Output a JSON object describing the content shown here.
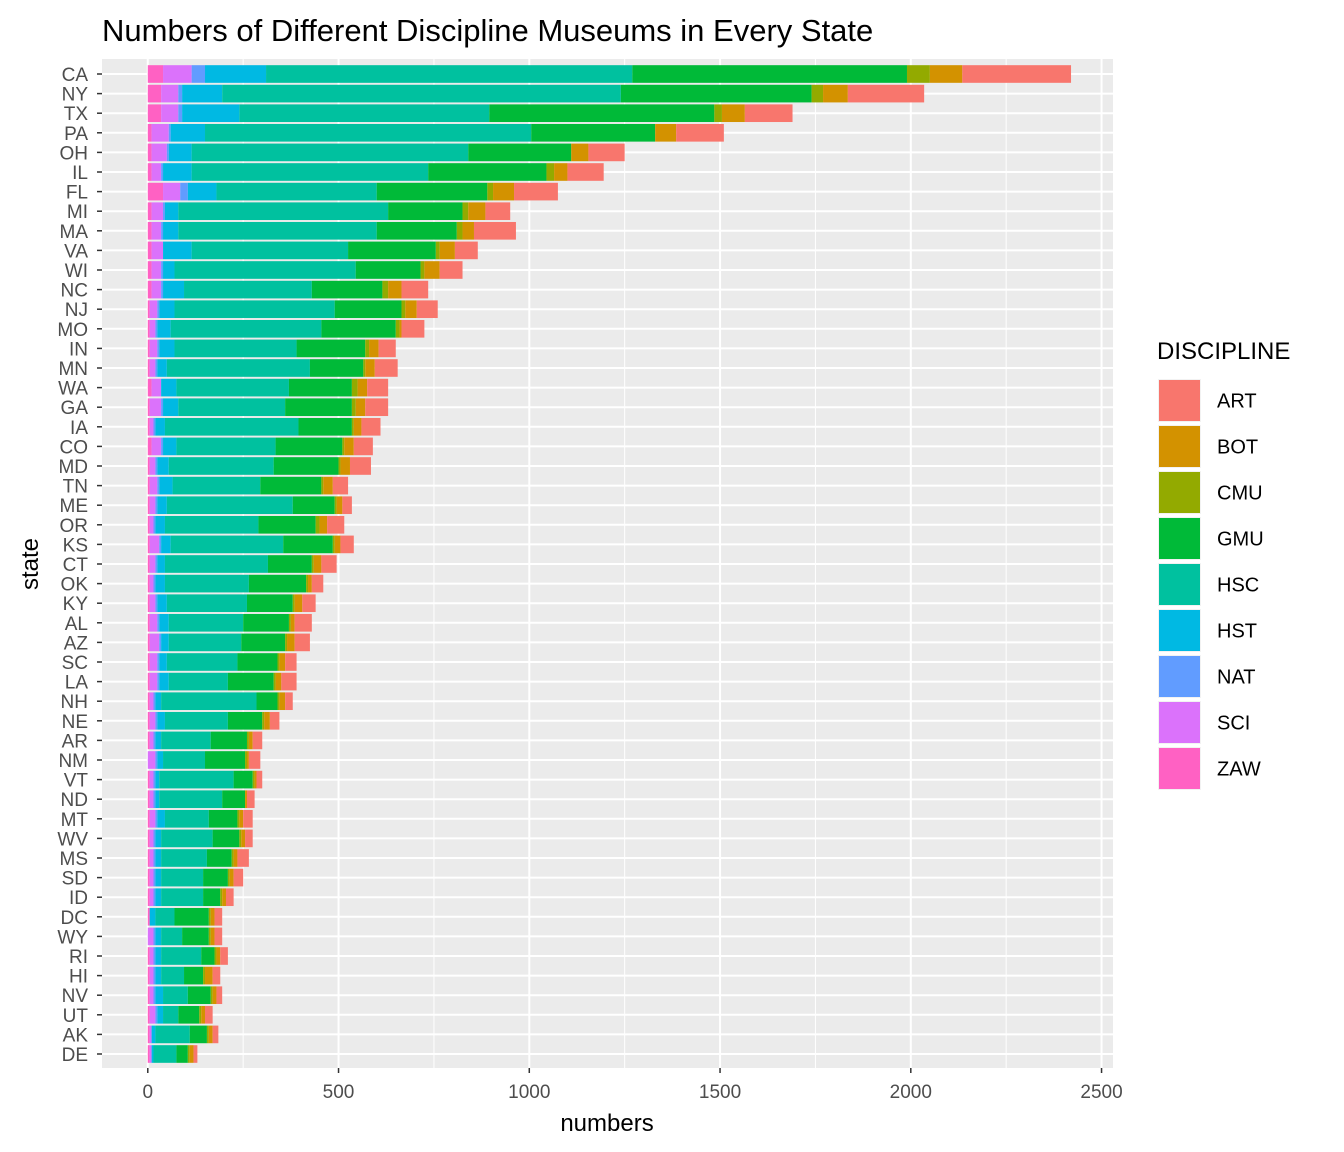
{
  "chart_data": {
    "type": "bar",
    "orientation": "horizontal",
    "stacked": true,
    "title": "Numbers of Different Discipline Museums in Every State",
    "xlabel": "numbers",
    "ylabel": "state",
    "xlim": [
      -120,
      2530
    ],
    "x_ticks": [
      0,
      500,
      1000,
      1500,
      2000,
      2500
    ],
    "grid": true,
    "legend": {
      "title": "DISCIPLINE",
      "position": "right"
    },
    "categories": [
      "CA",
      "NY",
      "TX",
      "PA",
      "OH",
      "IL",
      "FL",
      "MI",
      "MA",
      "VA",
      "WI",
      "NC",
      "NJ",
      "MO",
      "IN",
      "MN",
      "WA",
      "GA",
      "IA",
      "CO",
      "MD",
      "TN",
      "ME",
      "OR",
      "KS",
      "CT",
      "OK",
      "KY",
      "AL",
      "AZ",
      "SC",
      "LA",
      "NH",
      "NE",
      "AR",
      "NM",
      "VT",
      "ND",
      "MT",
      "WV",
      "MS",
      "SD",
      "ID",
      "DC",
      "WY",
      "RI",
      "HI",
      "NV",
      "UT",
      "AK",
      "DE"
    ],
    "stack_order": [
      "ZAW",
      "SCI",
      "NAT",
      "HST",
      "HSC",
      "GMU",
      "CMU",
      "BOT",
      "ART"
    ],
    "series": [
      {
        "name": "ART",
        "color": "#F8766D",
        "values": [
          285,
          200,
          125,
          125,
          95,
          95,
          115,
          65,
          110,
          60,
          60,
          70,
          55,
          60,
          45,
          60,
          55,
          60,
          50,
          50,
          55,
          40,
          25,
          45,
          35,
          40,
          30,
          35,
          45,
          40,
          30,
          40,
          20,
          25,
          25,
          30,
          15,
          20,
          25,
          20,
          30,
          25,
          20,
          20,
          20,
          20,
          20,
          15,
          20,
          15,
          10
        ]
      },
      {
        "name": "BOT",
        "color": "#D39200",
        "values": [
          85,
          65,
          60,
          55,
          45,
          35,
          55,
          45,
          30,
          40,
          40,
          35,
          30,
          5,
          25,
          25,
          25,
          25,
          20,
          25,
          25,
          25,
          15,
          20,
          15,
          20,
          10,
          20,
          10,
          20,
          15,
          15,
          15,
          15,
          10,
          5,
          5,
          5,
          10,
          10,
          10,
          10,
          10,
          10,
          10,
          10,
          20,
          10,
          10,
          10,
          10
        ]
      },
      {
        "name": "CMU",
        "color": "#93AA00",
        "values": [
          60,
          30,
          20,
          0,
          0,
          20,
          15,
          15,
          15,
          10,
          10,
          15,
          10,
          10,
          10,
          5,
          15,
          10,
          5,
          5,
          5,
          5,
          5,
          10,
          5,
          5,
          5,
          5,
          5,
          5,
          5,
          5,
          5,
          5,
          5,
          5,
          5,
          0,
          5,
          5,
          5,
          5,
          5,
          5,
          5,
          5,
          5,
          5,
          5,
          5,
          5
        ]
      },
      {
        "name": "GMU",
        "color": "#00BA38",
        "values": [
          720,
          500,
          590,
          325,
          270,
          310,
          290,
          195,
          210,
          230,
          170,
          185,
          175,
          195,
          180,
          140,
          165,
          175,
          140,
          175,
          170,
          160,
          110,
          150,
          130,
          115,
          150,
          120,
          120,
          115,
          105,
          120,
          55,
          90,
          95,
          105,
          50,
          60,
          75,
          70,
          65,
          65,
          45,
          90,
          70,
          35,
          50,
          60,
          55,
          45,
          30
        ]
      },
      {
        "name": "HSC",
        "color": "#00C19F",
        "values": [
          960,
          1045,
          655,
          855,
          725,
          620,
          420,
          550,
          520,
          410,
          475,
          335,
          420,
          395,
          320,
          375,
          295,
          280,
          350,
          260,
          275,
          230,
          330,
          245,
          295,
          270,
          220,
          210,
          195,
          190,
          185,
          155,
          250,
          165,
          130,
          110,
          195,
          165,
          115,
          135,
          120,
          110,
          110,
          50,
          55,
          105,
          60,
          65,
          40,
          90,
          60
        ]
      },
      {
        "name": "HST",
        "color": "#00B9E3",
        "values": [
          160,
          105,
          150,
          90,
          60,
          75,
          75,
          35,
          40,
          75,
          30,
          55,
          40,
          35,
          40,
          25,
          40,
          40,
          25,
          35,
          30,
          35,
          25,
          25,
          25,
          20,
          25,
          25,
          25,
          20,
          20,
          25,
          15,
          20,
          15,
          15,
          10,
          10,
          20,
          15,
          15,
          15,
          15,
          15,
          15,
          15,
          15,
          20,
          15,
          10,
          5
        ]
      },
      {
        "name": "NAT",
        "color": "#619CFF",
        "values": [
          35,
          10,
          10,
          5,
          5,
          5,
          20,
          5,
          5,
          0,
          5,
          5,
          5,
          5,
          5,
          5,
          0,
          5,
          5,
          5,
          5,
          5,
          5,
          5,
          5,
          5,
          5,
          5,
          5,
          5,
          5,
          5,
          5,
          5,
          5,
          5,
          5,
          5,
          5,
          5,
          5,
          5,
          5,
          0,
          5,
          5,
          5,
          5,
          5,
          0,
          0
        ]
      },
      {
        "name": "SCI",
        "color": "#DB72FB",
        "values": [
          75,
          45,
          45,
          45,
          40,
          25,
          45,
          30,
          25,
          30,
          25,
          25,
          20,
          15,
          20,
          15,
          25,
          30,
          10,
          25,
          15,
          20,
          15,
          10,
          25,
          15,
          10,
          15,
          20,
          25,
          20,
          20,
          10,
          15,
          10,
          20,
          10,
          10,
          15,
          10,
          10,
          10,
          10,
          0,
          15,
          10,
          10,
          10,
          15,
          5,
          5
        ]
      },
      {
        "name": "ZAW",
        "color": "#FF61C3",
        "values": [
          40,
          35,
          35,
          10,
          10,
          10,
          40,
          10,
          10,
          10,
          10,
          10,
          5,
          5,
          5,
          5,
          10,
          5,
          5,
          10,
          5,
          5,
          5,
          5,
          5,
          5,
          5,
          5,
          5,
          5,
          5,
          5,
          5,
          5,
          5,
          0,
          5,
          5,
          5,
          5,
          5,
          5,
          5,
          5,
          0,
          5,
          5,
          5,
          5,
          5,
          5
        ]
      }
    ]
  }
}
